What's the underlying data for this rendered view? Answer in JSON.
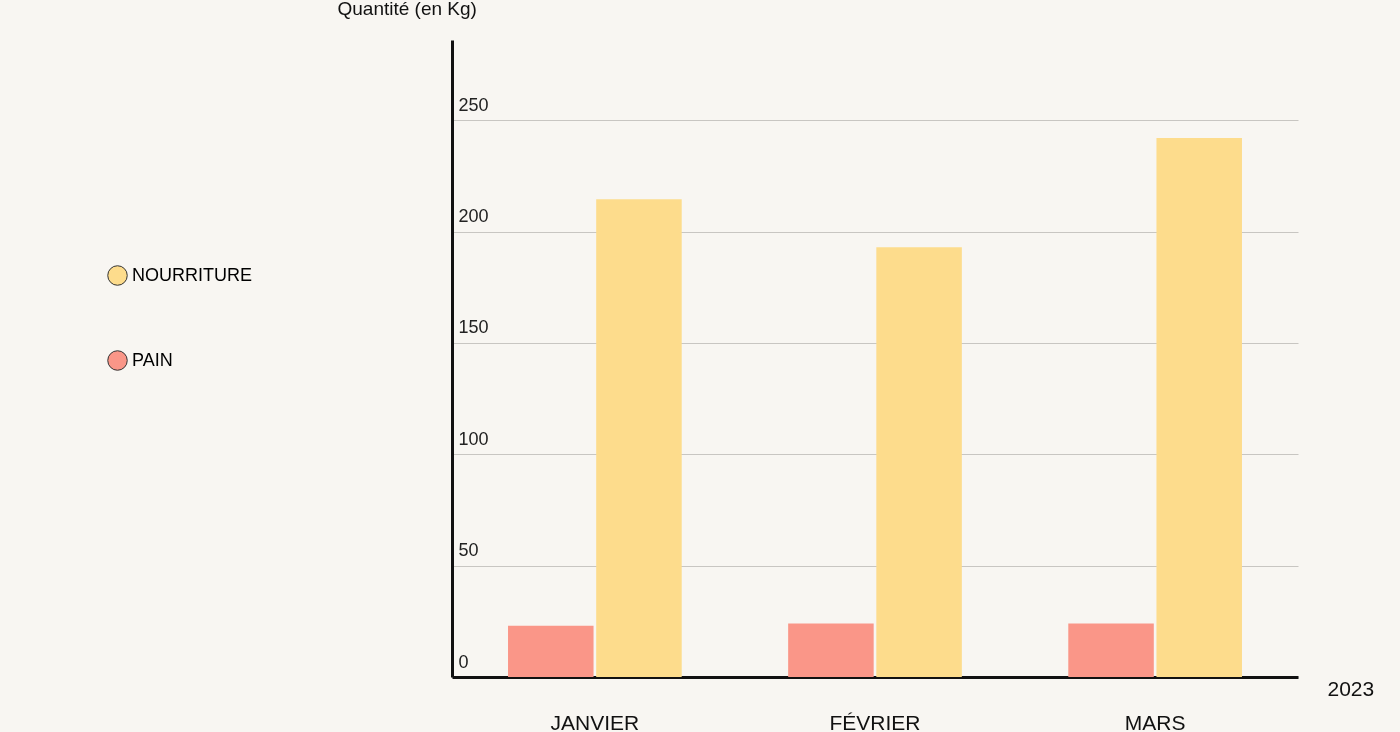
{
  "chart_data": {
    "type": "bar",
    "ylabel": "Quantité (en Kg)",
    "xlabel": "2023",
    "categories": [
      "JANVIER",
      "FÉVRIER",
      "MARS"
    ],
    "series": [
      {
        "name": "PAIN",
        "color": "#fa9688",
        "values": [
          23,
          24,
          24
        ]
      },
      {
        "name": "NOURRITURE",
        "color": "#fddc8c",
        "values": [
          214.5,
          193,
          242
        ]
      }
    ],
    "ylim": [
      0,
      286
    ],
    "yticks": [
      0,
      50,
      100,
      150,
      200,
      250
    ],
    "grid": "y",
    "legend": "left"
  }
}
